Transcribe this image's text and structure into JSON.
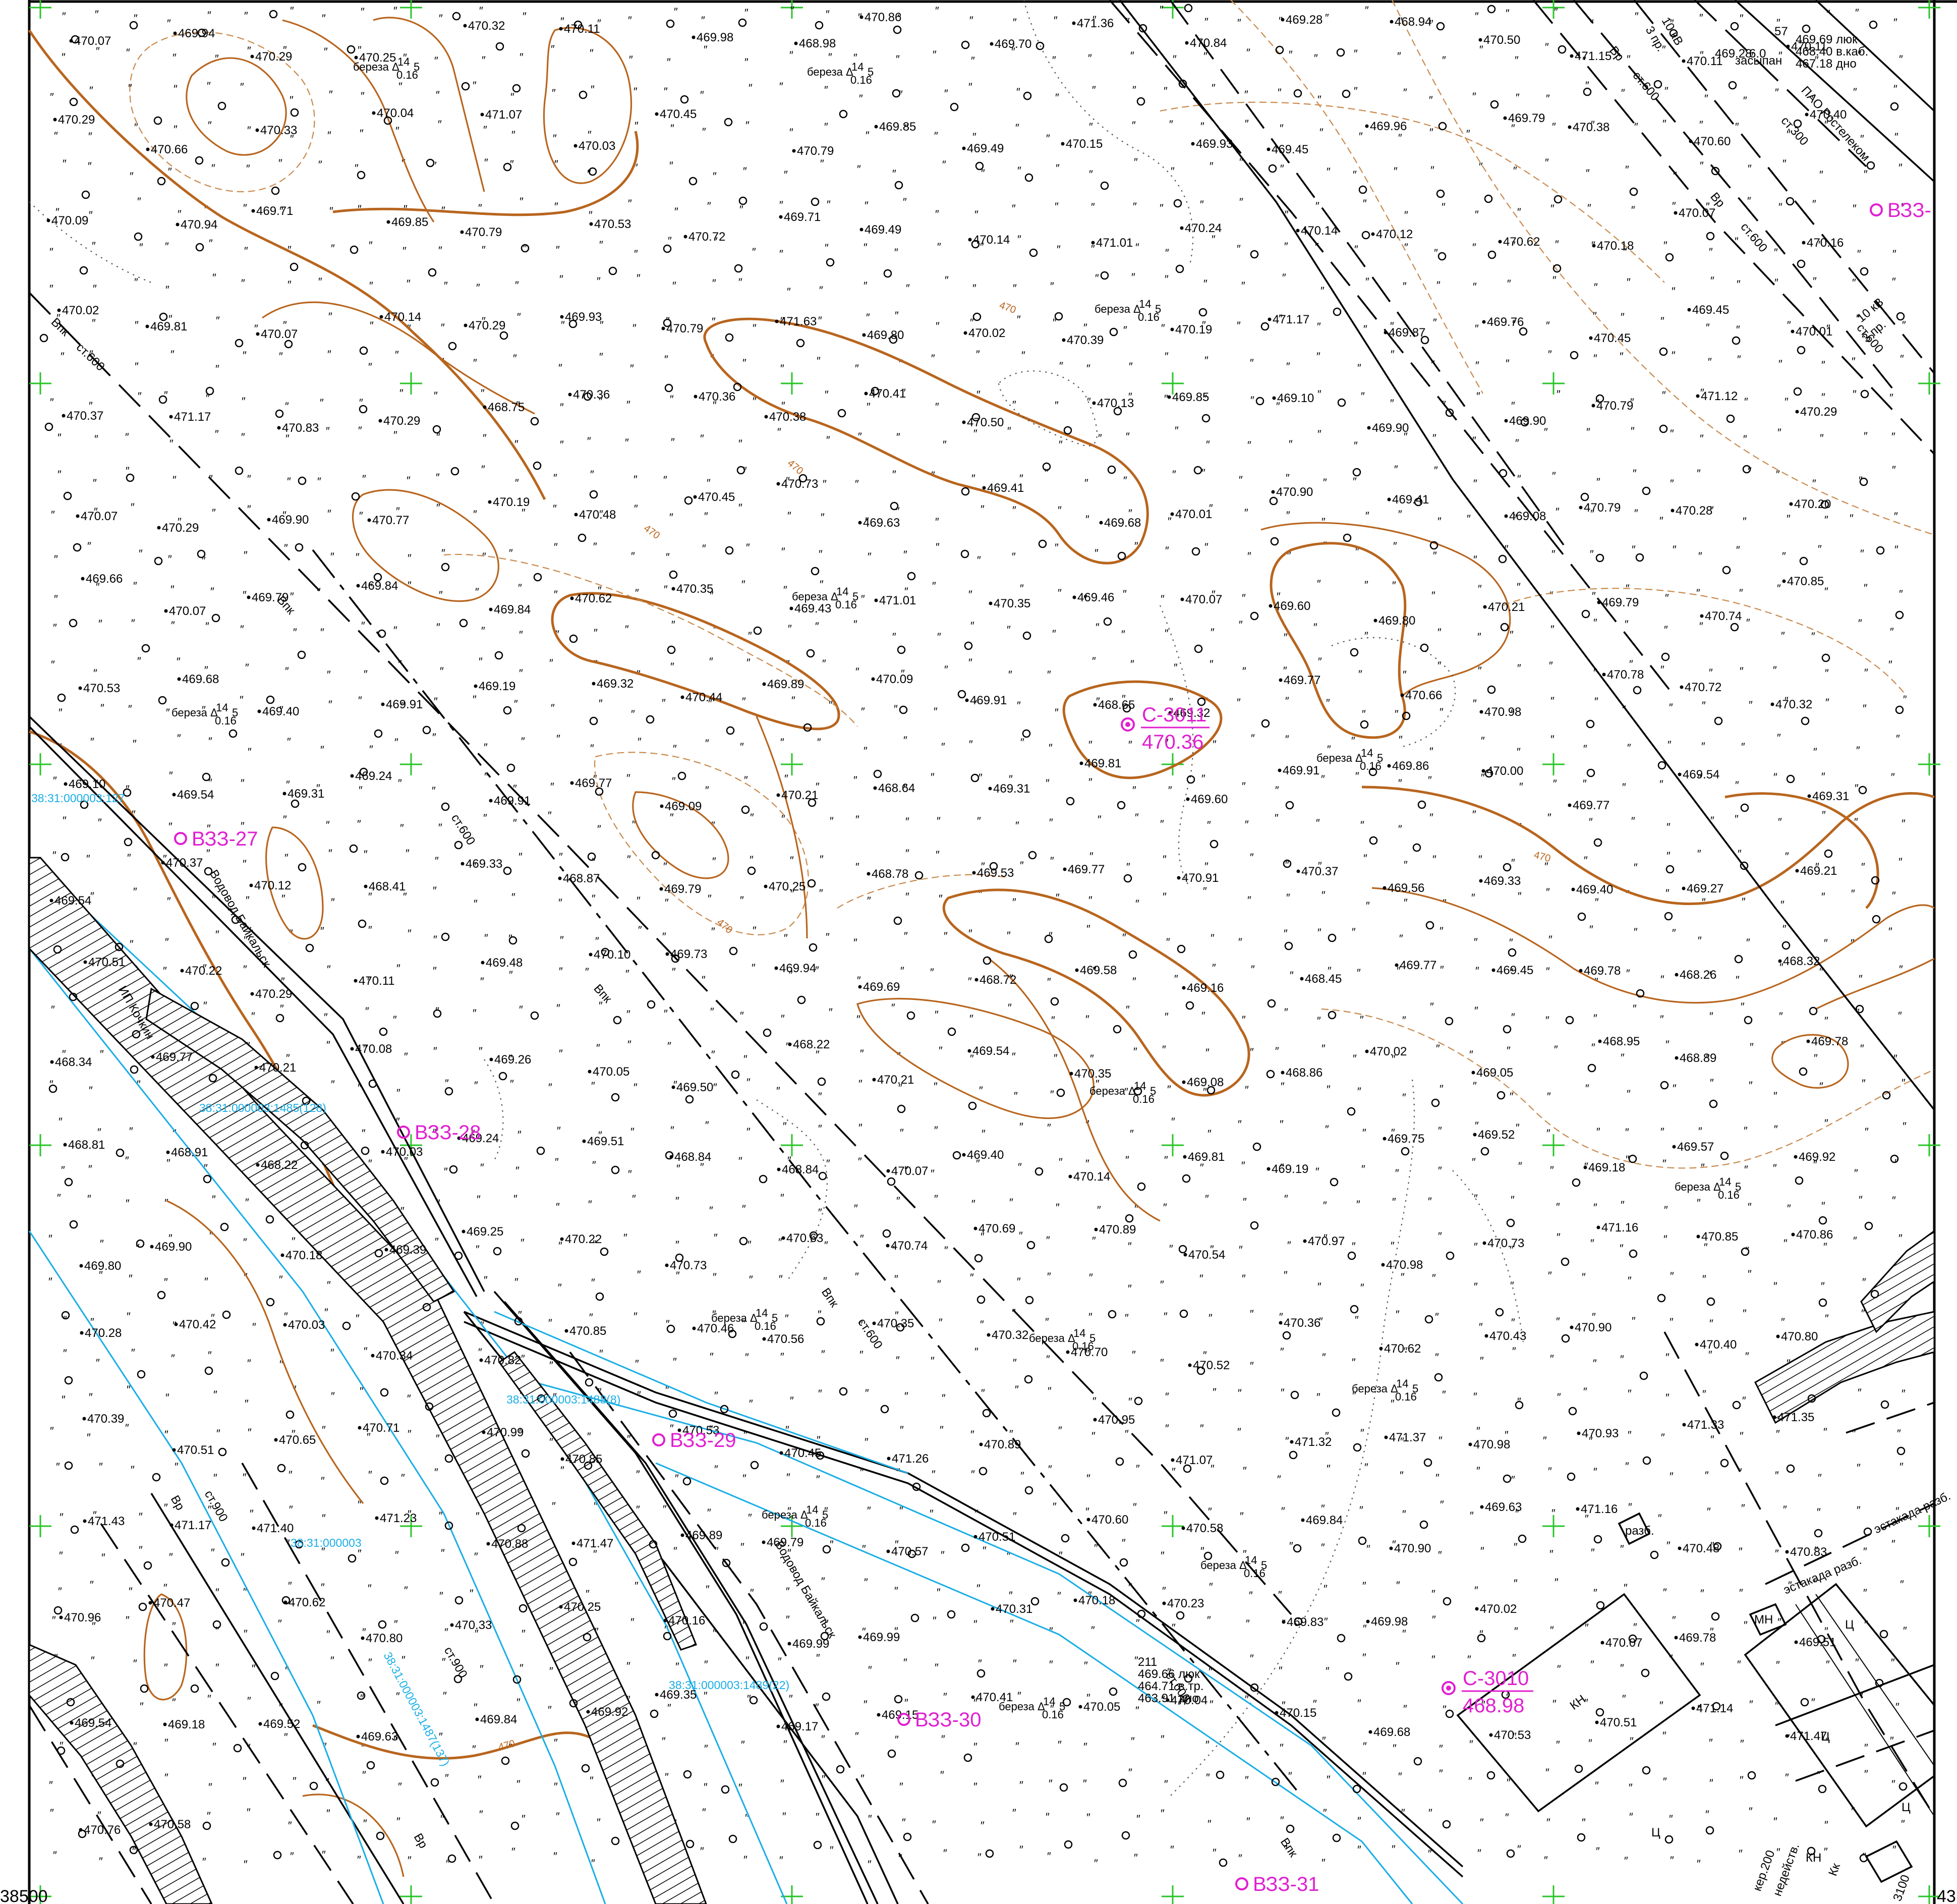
{
  "map": {
    "colors": {
      "contour": "#b8651e",
      "utility_line": "#000000",
      "cadastral": "#19aee6",
      "wells": "#e020d0",
      "grid": "#27c527"
    },
    "corner_labels": {
      "bottom_left": "38500",
      "bottom_right": "43"
    },
    "wells": [
      {
        "id": "С-3011",
        "elev": "470.36"
      },
      {
        "id": "С-3010",
        "elev": "468.98"
      }
    ],
    "pits": [
      "ВЗЗ-27",
      "ВЗЗ-28",
      "ВЗЗ-29",
      "ВЗЗ-30",
      "ВЗЗ-31",
      "ВЗЗ-"
    ],
    "cadastral_labels": [
      "38:31:000003",
      "38:31:000003:1485(128)",
      "38:31:000003:1488(8)",
      "38:31:000003:1489(22)",
      "38:31:000003:1487(137)",
      "38:31:000003:127"
    ],
    "line_labels": [
      {
        "text": "Впк",
        "kind": "pipeline"
      },
      {
        "text": "ст.600",
        "kind": "pipeline"
      },
      {
        "text": "Вр",
        "kind": "pipeline"
      },
      {
        "text": "ст.900",
        "kind": "pipeline"
      },
      {
        "text": "10 кВ",
        "kind": "power"
      },
      {
        "text": "3 пр.",
        "kind": "power"
      },
      {
        "text": "ИП Кочкин",
        "kind": "owner"
      },
      {
        "text": "Водовод Байкальск",
        "kind": "owner"
      },
      {
        "text": "эстакада разб.",
        "kind": "structure"
      },
      {
        "text": "кер.200",
        "kind": "pipeline"
      },
      {
        "text": "Кк",
        "kind": "pipeline"
      },
      {
        "text": "недейств.",
        "kind": "note"
      },
      {
        "text": "3100",
        "kind": "note"
      },
      {
        "text": "ПАО Ростелеком",
        "kind": "owner"
      },
      {
        "text": "ст.300",
        "kind": "pipeline"
      }
    ],
    "structures": [
      {
        "label": "КН"
      },
      {
        "label": "Ц"
      },
      {
        "label": "МН"
      },
      {
        "label": "разб."
      }
    ],
    "well_detail": {
      "id": "211",
      "lines": [
        "469.66 люк",
        "464.71 в.тр.",
        "463.91 дно"
      ]
    },
    "well_detail_top": {
      "lines": [
        "469.69 люк",
        "468.40 в.каб.",
        "467.18 дно"
      ],
      "id": "57",
      "extra": [
        "469.28",
        "6.0",
        "засыпан"
      ]
    },
    "tree_label": "береза",
    "tree_size": "14",
    "tree_height": "0.16",
    "tree_girth": "5",
    "contour_labels": [
      "470",
      "470",
      "470",
      "470",
      "470",
      "470"
    ],
    "spot_heights": [
      "470.07",
      "469.94",
      "470.29",
      "470.25",
      "470.32",
      "470.11",
      "469.98",
      "468.98",
      "470.86",
      "469.70",
      "471.36",
      "470.84",
      "469.28",
      "468.94",
      "470.50",
      "471.15",
      "470.11",
      "470.11",
      "470.29",
      "470.66",
      "470.33",
      "470.04",
      "471.07",
      "470.03",
      "470.45",
      "470.79",
      "469.85",
      "469.49",
      "470.15",
      "469.93",
      "469.45",
      "469.96",
      "469.79",
      "470.38",
      "470.60",
      "470.40",
      "470.09",
      "470.94",
      "469.71",
      "469.85",
      "470.79",
      "470.53",
      "470.72",
      "469.71",
      "469.49",
      "470.14",
      "471.01",
      "470.24",
      "470.14",
      "470.12",
      "470.62",
      "470.18",
      "470.07",
      "470.16",
      "470.02",
      "469.81",
      "470.07",
      "470.14",
      "470.29",
      "469.93",
      "470.79",
      "471.63",
      "469.80",
      "470.02",
      "470.39",
      "470.19",
      "471.17",
      "469.87",
      "469.76",
      "470.45",
      "469.45",
      "470.01",
      "470.37",
      "471.17",
      "470.83",
      "470.29",
      "468.75",
      "470.36",
      "470.36",
      "470.38",
      "470.41",
      "470.50",
      "470.13",
      "469.85",
      "469.10",
      "469.90",
      "469.90",
      "470.79",
      "471.12",
      "470.29",
      "470.07",
      "470.29",
      "469.90",
      "470.77",
      "470.19",
      "470.48",
      "470.45",
      "470.73",
      "469.63",
      "469.41",
      "469.68",
      "470.01",
      "470.90",
      "469.41",
      "469.08",
      "470.79",
      "470.28",
      "470.20",
      "469.66",
      "470.07",
      "469.79",
      "469.84",
      "469.84",
      "470.62",
      "470.35",
      "469.43",
      "471.01",
      "470.35",
      "469.46",
      "470.07",
      "469.60",
      "469.80",
      "470.21",
      "469.79",
      "470.74",
      "470.85",
      "470.53",
      "469.68",
      "469.40",
      "469.91",
      "469.19",
      "469.32",
      "470.44",
      "469.89",
      "470.09",
      "469.91",
      "468.65",
      "469.32",
      "469.77",
      "470.66",
      "470.98",
      "470.78",
      "470.72",
      "470.32",
      "469.10",
      "469.54",
      "469.31",
      "469.24",
      "469.91",
      "469.77",
      "469.09",
      "470.21",
      "468.64",
      "469.31",
      "469.81",
      "469.60",
      "469.91",
      "469.86",
      "470.00",
      "469.77",
      "469.54",
      "469.31",
      "469.54",
      "470.37",
      "470.12",
      "468.41",
      "469.33",
      "468.87",
      "469.79",
      "470.25",
      "468.78",
      "469.53",
      "469.77",
      "470.91",
      "470.37",
      "469.56",
      "469.33",
      "469.40",
      "469.27",
      "469.21",
      "470.51",
      "470.22",
      "470.29",
      "470.11",
      "469.48",
      "470.10",
      "469.73",
      "469.94",
      "469.69",
      "468.72",
      "469.58",
      "469.16",
      "468.45",
      "469.77",
      "469.45",
      "469.78",
      "468.26",
      "468.32",
      "468.34",
      "469.77",
      "470.21",
      "470.08",
      "469.26",
      "470.05",
      "469.50",
      "468.22",
      "470.21",
      "469.54",
      "470.35",
      "469.08",
      "468.86",
      "470.02",
      "469.05",
      "468.95",
      "468.89",
      "469.78",
      "468.81",
      "468.91",
      "468.22",
      "470.03",
      "469.24",
      "469.51",
      "468.84",
      "468.84",
      "470.07",
      "469.40",
      "470.14",
      "469.81",
      "469.19",
      "469.75",
      "469.52",
      "469.18",
      "469.57",
      "469.92",
      "469.80",
      "469.90",
      "470.18",
      "469.39",
      "469.25",
      "470.22",
      "470.73",
      "470.63",
      "470.74",
      "470.69",
      "470.89",
      "470.54",
      "470.97",
      "470.98",
      "470.73",
      "471.16",
      "470.85",
      "470.86",
      "470.28",
      "470.42",
      "470.03",
      "470.34",
      "470.82",
      "470.85",
      "470.46",
      "470.56",
      "470.35",
      "470.32",
      "470.70",
      "470.52",
      "470.36",
      "470.62",
      "470.43",
      "470.90",
      "470.40",
      "470.80",
      "470.39",
      "470.51",
      "470.65",
      "470.71",
      "470.99",
      "470.85",
      "470.53",
      "470.45",
      "471.26",
      "470.89",
      "470.95",
      "471.07",
      "471.32",
      "471.37",
      "470.98",
      "470.93",
      "471.33",
      "471.35",
      "471.43",
      "471.17",
      "471.40",
      "471.23",
      "470.88",
      "471.47",
      "469.89",
      "469.79",
      "470.57",
      "470.51",
      "470.60",
      "470.58",
      "469.84",
      "470.90",
      "469.63",
      "471.16",
      "470.48",
      "470.83",
      "470.96",
      "470.47",
      "470.62",
      "470.80",
      "470.33",
      "470.25",
      "470.16",
      "469.99",
      "469.99",
      "470.31",
      "470.18",
      "470.23",
      "469.83",
      "469.98",
      "470.02",
      "470.07",
      "469.78",
      "469.51",
      "469.54",
      "469.18",
      "469.52",
      "469.63",
      "469.84",
      "469.92",
      "469.35",
      "469.17",
      "469.15",
      "470.41",
      "470.05",
      "470.04",
      "470.15",
      "469.68",
      "470.53",
      "470.51",
      "471.14",
      "471.47",
      "470.76",
      "470.58"
    ]
  }
}
